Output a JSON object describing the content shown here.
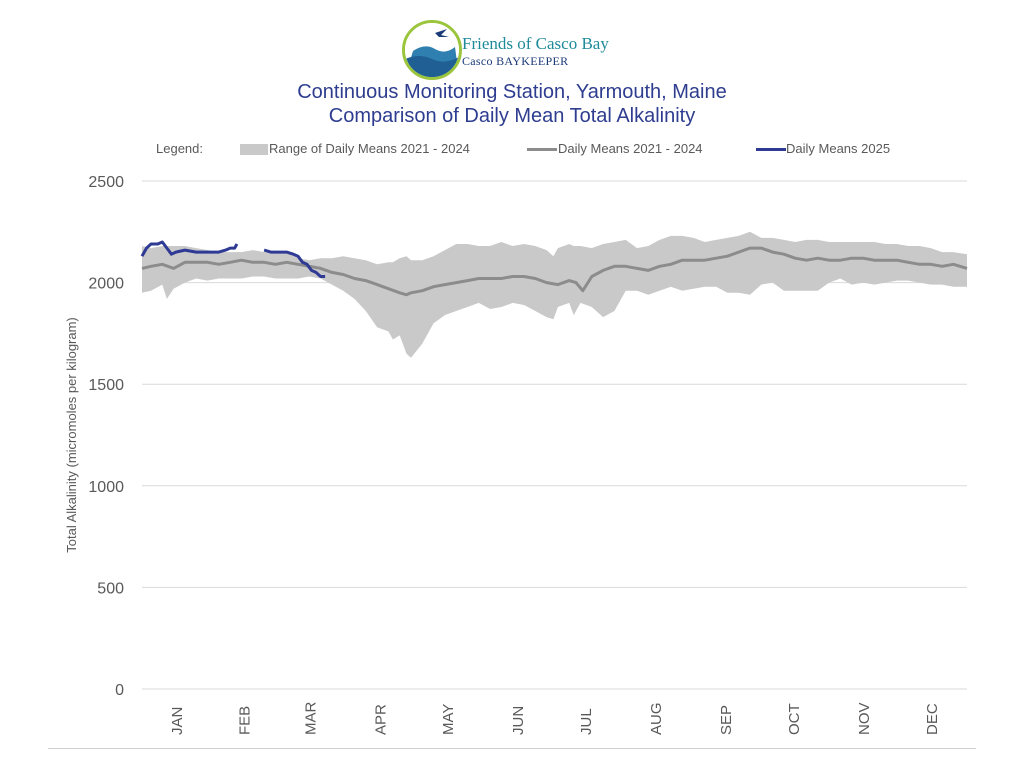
{
  "logo": {
    "name": "Friends of Casco Bay",
    "sub": "Casco BAYKEEPER"
  },
  "title_lines": [
    "Continuous Monitoring Station, Yarmouth, Maine",
    "Comparison of Daily Mean Total Alkalinity"
  ],
  "legend": {
    "label": "Legend:",
    "items": [
      "Range of Daily Means 2021 - 2024",
      "Daily Means 2021 - 2024",
      "Daily Means 2025"
    ]
  },
  "colors": {
    "range": "#c9c9c9",
    "mean": "#8c8c8c",
    "current": "#2e3a94",
    "grid": "#d9d9d9",
    "axis_text": "#595959"
  },
  "chart_data": {
    "type": "line",
    "ylabel": "Total Alkalinity (micromoles per kilogram)",
    "ylim": [
      0,
      2500
    ],
    "yticks": [
      0,
      500,
      1000,
      1500,
      2000,
      2500
    ],
    "xlim": [
      1,
      366
    ],
    "months": [
      {
        "label": "JAN",
        "mid": 16
      },
      {
        "label": "FEB",
        "mid": 46
      },
      {
        "label": "MAR",
        "mid": 75
      },
      {
        "label": "APR",
        "mid": 106
      },
      {
        "label": "MAY",
        "mid": 136
      },
      {
        "label": "JUN",
        "mid": 167
      },
      {
        "label": "JUL",
        "mid": 197
      },
      {
        "label": "AUG",
        "mid": 228
      },
      {
        "label": "SEP",
        "mid": 259
      },
      {
        "label": "OCT",
        "mid": 289
      },
      {
        "label": "NOV",
        "mid": 320
      },
      {
        "label": "DEC",
        "mid": 350
      }
    ],
    "grid": true,
    "series": [
      {
        "name": "Range of Daily Means 2021 - 2024",
        "kind": "band",
        "x": [
          1,
          5,
          10,
          12,
          15,
          20,
          25,
          30,
          35,
          40,
          45,
          50,
          55,
          60,
          65,
          70,
          75,
          80,
          85,
          90,
          95,
          100,
          105,
          110,
          112,
          115,
          118,
          120,
          125,
          130,
          135,
          140,
          145,
          150,
          155,
          160,
          165,
          170,
          175,
          180,
          183,
          185,
          190,
          192,
          195,
          200,
          205,
          210,
          215,
          220,
          225,
          230,
          235,
          240,
          245,
          250,
          255,
          260,
          265,
          270,
          275,
          280,
          285,
          290,
          295,
          300,
          305,
          310,
          315,
          320,
          325,
          330,
          335,
          340,
          345,
          350,
          355,
          360,
          366
        ],
        "high": [
          2180,
          2170,
          2180,
          2180,
          2180,
          2180,
          2170,
          2160,
          2150,
          2150,
          2150,
          2160,
          2150,
          2150,
          2150,
          2120,
          2110,
          2120,
          2120,
          2130,
          2120,
          2110,
          2090,
          2100,
          2100,
          2120,
          2130,
          2110,
          2110,
          2130,
          2160,
          2190,
          2190,
          2180,
          2180,
          2200,
          2180,
          2190,
          2180,
          2160,
          2130,
          2170,
          2190,
          2180,
          2180,
          2170,
          2190,
          2200,
          2210,
          2170,
          2180,
          2210,
          2230,
          2230,
          2220,
          2200,
          2210,
          2220,
          2230,
          2250,
          2220,
          2220,
          2210,
          2200,
          2210,
          2210,
          2200,
          2200,
          2200,
          2200,
          2200,
          2190,
          2190,
          2180,
          2180,
          2170,
          2150,
          2150,
          2140
        ],
        "low": [
          1950,
          1960,
          1990,
          1920,
          1970,
          2000,
          2020,
          2010,
          2020,
          2020,
          2020,
          2030,
          2030,
          2020,
          2020,
          2020,
          2030,
          2020,
          1990,
          1960,
          1920,
          1860,
          1780,
          1760,
          1720,
          1740,
          1650,
          1630,
          1700,
          1800,
          1840,
          1860,
          1880,
          1900,
          1870,
          1880,
          1900,
          1890,
          1860,
          1830,
          1820,
          1880,
          1900,
          1840,
          1900,
          1880,
          1830,
          1860,
          1960,
          1960,
          1940,
          1960,
          1980,
          1960,
          1970,
          1980,
          1980,
          1950,
          1950,
          1940,
          1990,
          2000,
          1960,
          1960,
          1960,
          1960,
          2000,
          2020,
          1990,
          2000,
          1990,
          2000,
          2010,
          2010,
          2000,
          1990,
          1990,
          1980,
          1980
        ]
      },
      {
        "name": "Daily Means 2021 - 2024",
        "kind": "line",
        "x": [
          1,
          5,
          10,
          15,
          20,
          25,
          30,
          35,
          40,
          45,
          50,
          55,
          60,
          65,
          70,
          75,
          80,
          85,
          90,
          95,
          100,
          105,
          110,
          115,
          118,
          120,
          125,
          130,
          135,
          140,
          145,
          150,
          155,
          160,
          165,
          170,
          175,
          180,
          185,
          190,
          193,
          196,
          200,
          205,
          210,
          215,
          220,
          225,
          230,
          235,
          240,
          245,
          250,
          255,
          260,
          265,
          270,
          275,
          280,
          285,
          290,
          295,
          300,
          305,
          310,
          315,
          320,
          325,
          330,
          335,
          340,
          345,
          350,
          355,
          360,
          366
        ],
        "values": [
          2070,
          2080,
          2090,
          2070,
          2100,
          2100,
          2100,
          2090,
          2100,
          2110,
          2100,
          2100,
          2090,
          2100,
          2090,
          2080,
          2070,
          2050,
          2040,
          2020,
          2010,
          1990,
          1970,
          1950,
          1940,
          1950,
          1960,
          1980,
          1990,
          2000,
          2010,
          2020,
          2020,
          2020,
          2030,
          2030,
          2020,
          2000,
          1990,
          2010,
          2000,
          1960,
          2030,
          2060,
          2080,
          2080,
          2070,
          2060,
          2080,
          2090,
          2110,
          2110,
          2110,
          2120,
          2130,
          2150,
          2170,
          2170,
          2150,
          2140,
          2120,
          2110,
          2120,
          2110,
          2110,
          2120,
          2120,
          2110,
          2110,
          2110,
          2100,
          2090,
          2090,
          2080,
          2090,
          2070
        ]
      },
      {
        "name": "Daily Means 2025",
        "kind": "line",
        "segments": [
          {
            "x": [
              1,
              3,
              5,
              8,
              10,
              12,
              14,
              16,
              20,
              25,
              30,
              35,
              38,
              40,
              42,
              43
            ],
            "values": [
              2130,
              2170,
              2190,
              2190,
              2200,
              2170,
              2140,
              2150,
              2160,
              2150,
              2150,
              2150,
              2160,
              2170,
              2170,
              2190
            ]
          },
          {
            "x": [
              55,
              58,
              62,
              65,
              68,
              70,
              72,
              74,
              76,
              78,
              80,
              82
            ],
            "values": [
              2160,
              2150,
              2150,
              2150,
              2140,
              2130,
              2100,
              2090,
              2060,
              2050,
              2030,
              2030
            ]
          }
        ]
      }
    ]
  }
}
